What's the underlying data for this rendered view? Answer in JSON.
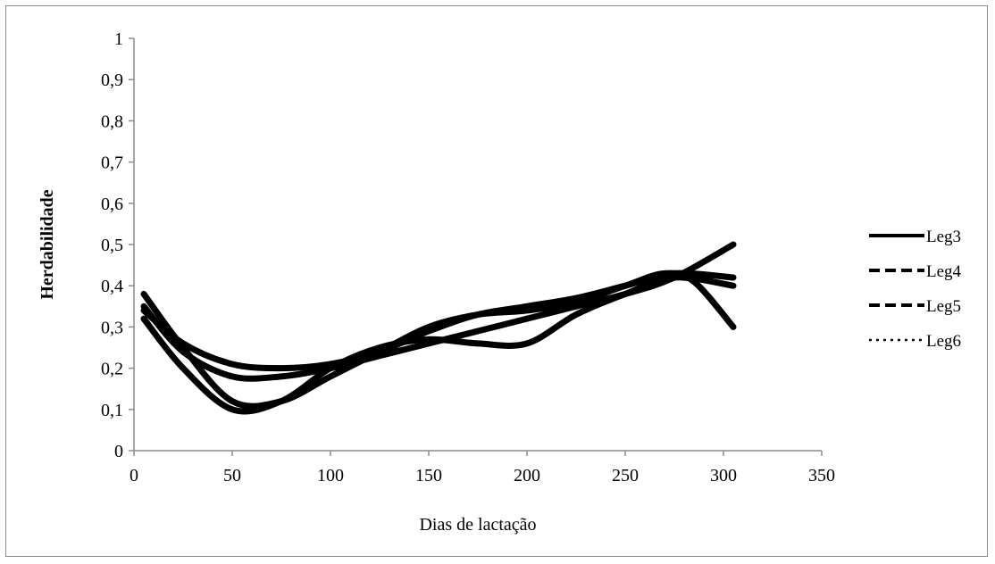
{
  "chart_data": {
    "type": "line",
    "xlabel": "Dias de lactação",
    "ylabel": "Herdabilidade",
    "xlim": [
      0,
      350
    ],
    "ylim": [
      0,
      1
    ],
    "x_ticks": [
      0,
      50,
      100,
      150,
      200,
      250,
      300,
      350
    ],
    "x_tick_labels": [
      "0",
      "50",
      "100",
      "150",
      "200",
      "250",
      "300",
      "350"
    ],
    "y_ticks": [
      0,
      0.1,
      0.2,
      0.3,
      0.4,
      0.5,
      0.6,
      0.7,
      0.8,
      0.9,
      1
    ],
    "y_tick_labels": [
      "0",
      "0,1",
      "0,2",
      "0,3",
      "0,4",
      "0,5",
      "0,6",
      "0,7",
      "0,8",
      "0,9",
      "1"
    ],
    "grid": false,
    "legend_position": "right",
    "series": [
      {
        "name": "Leg3",
        "dash": "solid",
        "x": [
          5,
          25,
          50,
          75,
          100,
          125,
          150,
          175,
          200,
          225,
          250,
          275,
          305
        ],
        "values": [
          0.34,
          0.26,
          0.21,
          0.2,
          0.21,
          0.24,
          0.29,
          0.33,
          0.35,
          0.37,
          0.4,
          0.43,
          0.42
        ]
      },
      {
        "name": "Leg4",
        "dash": "dashed",
        "x": [
          5,
          25,
          50,
          75,
          100,
          125,
          150,
          175,
          200,
          225,
          250,
          270,
          285,
          305
        ],
        "values": [
          0.38,
          0.25,
          0.12,
          0.12,
          0.18,
          0.24,
          0.3,
          0.33,
          0.34,
          0.36,
          0.4,
          0.43,
          0.41,
          0.3
        ]
      },
      {
        "name": "Leg5",
        "dash": "dashed",
        "x": [
          5,
          25,
          50,
          75,
          100,
          125,
          150,
          175,
          200,
          225,
          250,
          275,
          305
        ],
        "values": [
          0.32,
          0.2,
          0.1,
          0.12,
          0.2,
          0.25,
          0.27,
          0.26,
          0.26,
          0.33,
          0.38,
          0.42,
          0.4
        ]
      },
      {
        "name": "Leg6",
        "dash": "dotted",
        "x": [
          5,
          25,
          50,
          75,
          100,
          125,
          150,
          175,
          200,
          225,
          250,
          275,
          305
        ],
        "values": [
          0.35,
          0.24,
          0.18,
          0.18,
          0.2,
          0.23,
          0.26,
          0.29,
          0.32,
          0.35,
          0.38,
          0.42,
          0.5
        ]
      }
    ]
  }
}
